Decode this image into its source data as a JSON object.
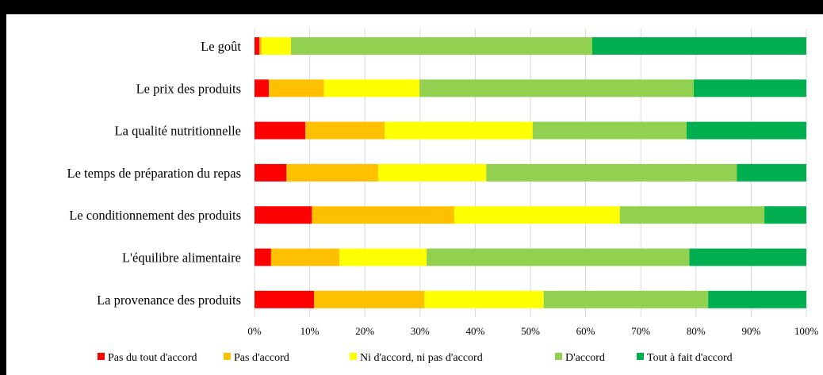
{
  "chart_data": {
    "type": "bar",
    "orientation": "horizontal",
    "stacked": "percent",
    "title": "",
    "xlabel": "",
    "ylabel": "",
    "xlim": [
      0,
      100
    ],
    "grid": true,
    "legend_position": "bottom",
    "categories": [
      "Le goût",
      "Le prix des produits",
      "La qualité nutritionnelle",
      "Le temps de préparation du repas",
      "Le conditionnement des produits",
      "L'équilibre alimentaire",
      "La provenance des produits"
    ],
    "x_ticks": [
      "0%",
      "10%",
      "20%",
      "30%",
      "40%",
      "50%",
      "60%",
      "70%",
      "80%",
      "90%",
      "100%"
    ],
    "series": [
      {
        "name": "Pas du tout d'accord",
        "color": "#FF0000",
        "values": [
          0.9,
          2.6,
          9.2,
          5.8,
          10.4,
          3.0,
          10.8
        ]
      },
      {
        "name": "Pas d'accord",
        "color": "#FFC000",
        "values": [
          0.4,
          10.0,
          14.4,
          16.6,
          25.8,
          12.4,
          20.0
        ]
      },
      {
        "name": "Ni d'accord, ni pas d'accord",
        "color": "#FFFF00",
        "values": [
          5.3,
          17.3,
          26.8,
          19.6,
          30.0,
          15.8,
          21.6
        ]
      },
      {
        "name": "D'accord",
        "color": "#92D050",
        "values": [
          54.6,
          49.7,
          27.9,
          45.4,
          26.2,
          47.6,
          29.8
        ]
      },
      {
        "name": "Tout à fait d'accord",
        "color": "#00B050",
        "values": [
          38.8,
          20.4,
          21.7,
          12.6,
          7.6,
          21.2,
          17.8
        ]
      }
    ]
  }
}
